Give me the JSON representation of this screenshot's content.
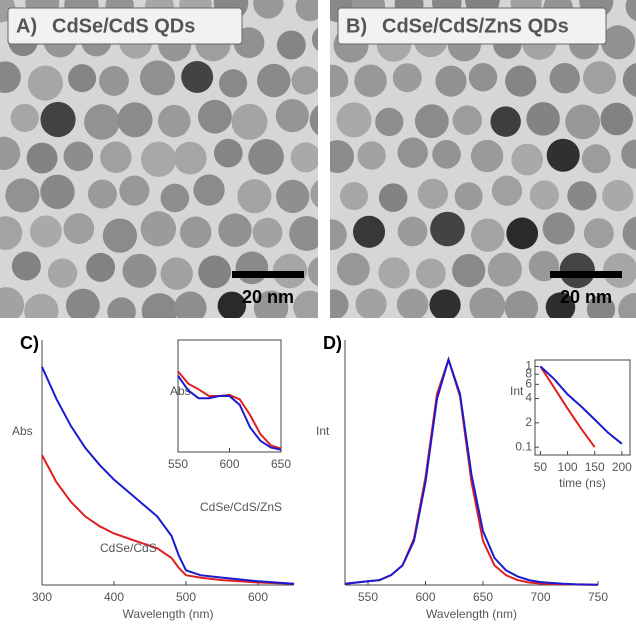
{
  "panels": [
    {
      "label": "A)",
      "title": "CdSe/CdS QDs",
      "title_color": "#e0201e",
      "scale_bar": "20 nm"
    },
    {
      "label": "B)",
      "title": "CdSe/CdS/ZnS QDs",
      "title_color": "#1d1dd6",
      "scale_bar": "20 nm"
    }
  ],
  "chart_data": [
    {
      "type": "line",
      "panel_label": "C)",
      "x_label": "Wavelength (nm)",
      "y_label": "Abs",
      "x": [
        300,
        320,
        340,
        360,
        380,
        400,
        420,
        440,
        460,
        480,
        490,
        500,
        520,
        550,
        600,
        650
      ],
      "xlim": [
        300,
        650
      ],
      "xticks": [
        300,
        400,
        500,
        600
      ],
      "ylim": [
        0,
        1
      ],
      "series": [
        {
          "name": "CdSe/CdS",
          "color": "#e02020",
          "values": [
            0.53,
            0.42,
            0.34,
            0.28,
            0.24,
            0.21,
            0.19,
            0.17,
            0.15,
            0.11,
            0.07,
            0.04,
            0.03,
            0.02,
            0.01,
            0.005
          ]
        },
        {
          "name": "CdSe/CdS/ZnS",
          "color": "#1a1ad0",
          "values": [
            0.89,
            0.76,
            0.65,
            0.56,
            0.49,
            0.43,
            0.38,
            0.33,
            0.28,
            0.2,
            0.12,
            0.06,
            0.04,
            0.03,
            0.015,
            0.005
          ]
        }
      ]
    },
    {
      "type": "line",
      "y_label": "Abs",
      "x": [
        550,
        560,
        570,
        580,
        590,
        600,
        610,
        620,
        630,
        640,
        650
      ],
      "xlim": [
        550,
        650
      ],
      "xticks": [
        550,
        600,
        650
      ],
      "ylim": [
        0,
        1
      ],
      "series": [
        {
          "color": "#e02020",
          "values": [
            0.72,
            0.61,
            0.56,
            0.5,
            0.5,
            0.51,
            0.47,
            0.33,
            0.16,
            0.06,
            0.03
          ]
        },
        {
          "color": "#1a1ad0",
          "values": [
            0.68,
            0.55,
            0.48,
            0.48,
            0.5,
            0.5,
            0.42,
            0.22,
            0.1,
            0.04,
            0.02
          ]
        }
      ]
    },
    {
      "type": "line",
      "panel_label": "D)",
      "x_label": "Wavelength (nm)",
      "y_label": "Int",
      "x": [
        530,
        540,
        550,
        560,
        570,
        580,
        590,
        600,
        610,
        620,
        630,
        640,
        650,
        660,
        670,
        680,
        690,
        700,
        710,
        720,
        730,
        740,
        750
      ],
      "xlim": [
        530,
        750
      ],
      "xticks": [
        550,
        600,
        650,
        700,
        750
      ],
      "ylim": [
        0,
        1
      ],
      "series": [
        {
          "color": "#e02020",
          "values": [
            0.005,
            0.01,
            0.015,
            0.02,
            0.04,
            0.08,
            0.19,
            0.44,
            0.78,
            0.92,
            0.77,
            0.42,
            0.18,
            0.08,
            0.04,
            0.02,
            0.01,
            0.006,
            0.004,
            0.003,
            0.002,
            0.001,
            0.001
          ]
        },
        {
          "color": "#1a1ad0",
          "values": [
            0.005,
            0.01,
            0.015,
            0.02,
            0.04,
            0.08,
            0.18,
            0.42,
            0.76,
            0.92,
            0.78,
            0.45,
            0.22,
            0.11,
            0.06,
            0.035,
            0.02,
            0.012,
            0.008,
            0.005,
            0.003,
            0.002,
            0.001
          ]
        }
      ]
    },
    {
      "type": "line",
      "x_label": "time (ns)",
      "y_label": "Int",
      "log_y": true,
      "x": [
        50,
        75,
        100,
        125,
        150,
        175,
        200
      ],
      "xlim": [
        40,
        215
      ],
      "xticks": [
        50,
        100,
        150,
        200
      ],
      "ylim": [
        0.08,
        1.2
      ],
      "yticks": [
        {
          "value": 1,
          "label": "1"
        },
        {
          "value": 0.8,
          "label": "8"
        },
        {
          "value": 0.6,
          "label": "6"
        },
        {
          "value": 0.4,
          "label": "4"
        },
        {
          "value": 0.2,
          "label": "2"
        },
        0.1
      ],
      "series": [
        {
          "color": "#e02020",
          "values": [
            1,
            0.55,
            0.3,
            0.17,
            0.1,
            null,
            null
          ]
        },
        {
          "color": "#1a1ad0",
          "values": [
            1,
            0.7,
            0.45,
            0.32,
            0.22,
            0.15,
            0.11
          ]
        }
      ]
    }
  ]
}
